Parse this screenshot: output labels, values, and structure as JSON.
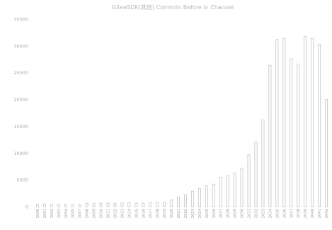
{
  "chart_data": {
    "type": "bar",
    "title": "GiteeSDK(其他) Commits Before in Channel",
    "categories": [
      "2000",
      "2001",
      "2002",
      "2003",
      "2004",
      "2005",
      "2007",
      "2008",
      "2009",
      "2010",
      "2011",
      "2012",
      "2013",
      "2014",
      "2015",
      "2016",
      "2017",
      "2018",
      "2019",
      "2020",
      "2021",
      "2022",
      "2023",
      "2024",
      "2025",
      "2026",
      "2027",
      "2028",
      "2029",
      "2030",
      "2031",
      "2032",
      "2033",
      "2034",
      "2035",
      "2036",
      "2037",
      "2038",
      "2039",
      "2040",
      "2041",
      "2042"
    ],
    "values": [
      450,
      500,
      420,
      460,
      430,
      400,
      380,
      600,
      560,
      620,
      650,
      590,
      700,
      710,
      660,
      620,
      760,
      800,
      860,
      1300,
      1800,
      2200,
      2900,
      3400,
      3900,
      4200,
      5500,
      5800,
      6300,
      7200,
      9700,
      12100,
      16200,
      26400,
      31200,
      31400,
      27600,
      26600,
      31800,
      31400,
      30300,
      20000
    ],
    "ylim": [
      0,
      35000
    ],
    "yticks": [
      0,
      5000,
      10000,
      15000,
      20000,
      25000,
      30000,
      35000
    ],
    "ytick_labels": [
      "0",
      "5000",
      "10000",
      "15000",
      "20000",
      "25000",
      "30000",
      "35000"
    ],
    "grid": false,
    "legend": "none",
    "colors": {
      "bar_stroke": "#c4c4c4",
      "bar_fill": "#ffffff",
      "text": "#a8a8a8",
      "title": "#b8b8b8"
    }
  }
}
